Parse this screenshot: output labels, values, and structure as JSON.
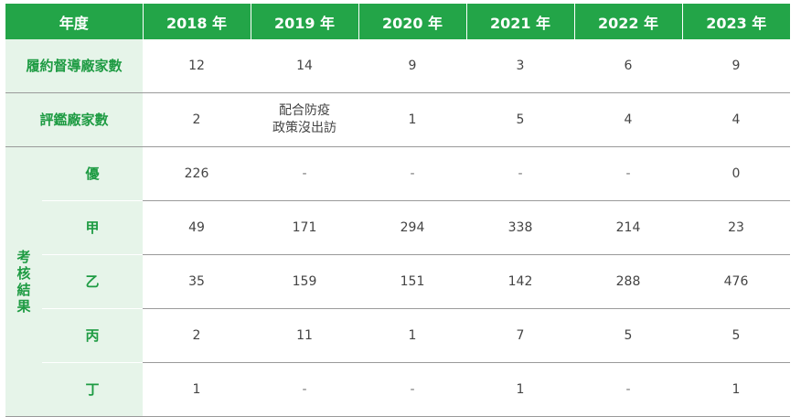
{
  "header": {
    "label": "年度",
    "years": [
      "2018 年",
      "2019 年",
      "2020 年",
      "2021 年",
      "2022 年",
      "2023 年"
    ]
  },
  "rows": {
    "contract": {
      "label": "履約督導廠家數",
      "values": [
        "12",
        "14",
        "9",
        "3",
        "6",
        "9"
      ]
    },
    "evaluation": {
      "label": "評鑑廠家數",
      "values": [
        "2",
        "配合防疫政策沒出訪",
        "1",
        "5",
        "4",
        "4"
      ]
    },
    "evaluation_note_line1": "配合防疫",
    "evaluation_note_line2": "政策沒出訪"
  },
  "results": {
    "label": "考核結果",
    "grades": [
      {
        "label": "優",
        "values": [
          "226",
          "-",
          "-",
          "-",
          "-",
          "0"
        ]
      },
      {
        "label": "甲",
        "values": [
          "49",
          "171",
          "294",
          "338",
          "214",
          "23"
        ]
      },
      {
        "label": "乙",
        "values": [
          "35",
          "159",
          "151",
          "142",
          "288",
          "476"
        ]
      },
      {
        "label": "丙",
        "values": [
          "2",
          "11",
          "1",
          "7",
          "5",
          "5"
        ]
      },
      {
        "label": "丁",
        "values": [
          "1",
          "-",
          "-",
          "1",
          "-",
          "1"
        ]
      }
    ]
  },
  "colors": {
    "header_bg": "#23a548",
    "label_bg": "#e6f4e9",
    "label_text": "#1e9b43"
  }
}
